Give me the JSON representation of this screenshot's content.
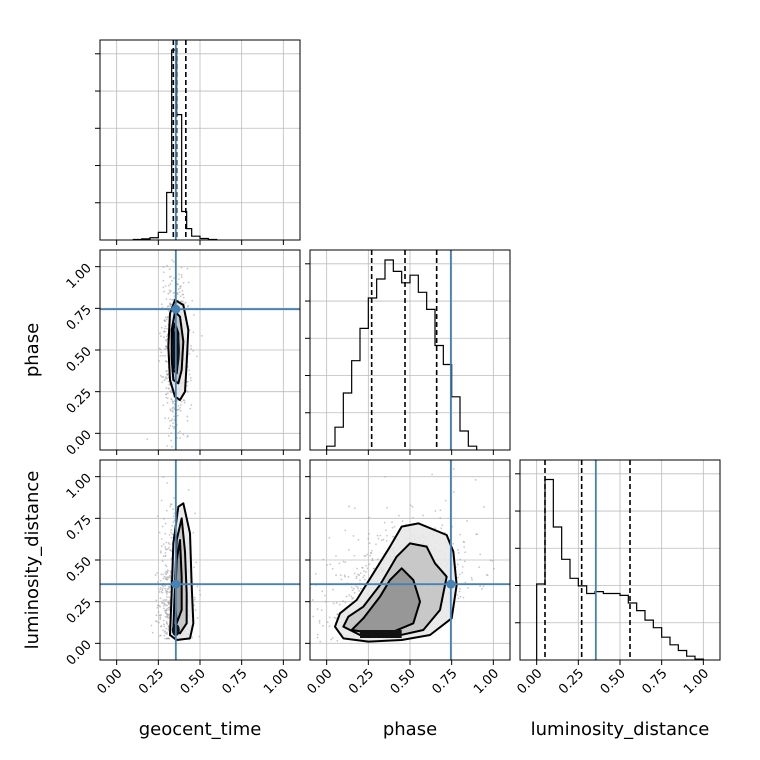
{
  "chart_data": {
    "type": "corner",
    "parameters": [
      "geocent_time",
      "phase",
      "luminosity_distance"
    ],
    "axis_range": [
      -0.1,
      1.1
    ],
    "ticks": [
      "0.00",
      "0.25",
      "0.50",
      "0.75",
      "1.00"
    ],
    "tick_values": [
      0,
      0.25,
      0.5,
      0.75,
      1.0
    ],
    "truths": [
      0.355,
      0.745,
      0.355
    ],
    "truth_color": "#4682b4",
    "grid": true,
    "histograms": [
      {
        "parameter": "geocent_time",
        "bin_edges": [
          0.1,
          0.15,
          0.2,
          0.25,
          0.3,
          0.33,
          0.36,
          0.39,
          0.42,
          0.45,
          0.5,
          0.55,
          0.6
        ],
        "counts": [
          0.003,
          0.006,
          0.012,
          0.04,
          0.25,
          1.0,
          0.66,
          0.15,
          0.06,
          0.02,
          0.008,
          0.003
        ],
        "quantiles": [
          0.34,
          0.36,
          0.415
        ]
      },
      {
        "parameter": "phase",
        "bin_edges": [
          0.0,
          0.05,
          0.1,
          0.15,
          0.2,
          0.25,
          0.3,
          0.35,
          0.4,
          0.45,
          0.5,
          0.55,
          0.6,
          0.65,
          0.7,
          0.75,
          0.8,
          0.85,
          0.9
        ],
        "counts": [
          0.02,
          0.12,
          0.3,
          0.47,
          0.64,
          0.8,
          0.9,
          1.0,
          0.94,
          0.88,
          0.92,
          0.83,
          0.74,
          0.55,
          0.45,
          0.28,
          0.1,
          0.02
        ],
        "quantiles": [
          0.27,
          0.47,
          0.66
        ]
      },
      {
        "parameter": "luminosity_distance",
        "bin_edges": [
          0.0,
          0.05,
          0.1,
          0.15,
          0.2,
          0.25,
          0.3,
          0.35,
          0.4,
          0.45,
          0.5,
          0.55,
          0.6,
          0.65,
          0.7,
          0.75,
          0.8,
          0.85,
          0.9,
          0.95,
          1.0
        ],
        "counts": [
          0.4,
          0.95,
          0.7,
          0.53,
          0.43,
          0.39,
          0.35,
          0.36,
          0.35,
          0.35,
          0.34,
          0.3,
          0.26,
          0.21,
          0.17,
          0.12,
          0.08,
          0.05,
          0.02,
          0.005
        ],
        "quantiles": [
          0.05,
          0.27,
          0.56
        ]
      }
    ],
    "pairs": [
      {
        "x": "geocent_time",
        "y": "phase",
        "center": [
          0.355,
          0.5
        ],
        "spread": [
          0.04,
          0.22
        ],
        "contours": [
          [
            [
              0.35,
              0.8
            ],
            [
              0.4,
              0.77
            ],
            [
              0.43,
              0.62
            ],
            [
              0.42,
              0.42
            ],
            [
              0.41,
              0.25
            ],
            [
              0.38,
              0.2
            ],
            [
              0.35,
              0.22
            ],
            [
              0.32,
              0.32
            ],
            [
              0.31,
              0.52
            ],
            [
              0.32,
              0.72
            ]
          ],
          [
            [
              0.35,
              0.73
            ],
            [
              0.38,
              0.7
            ],
            [
              0.4,
              0.55
            ],
            [
              0.39,
              0.38
            ],
            [
              0.37,
              0.3
            ],
            [
              0.34,
              0.32
            ],
            [
              0.33,
              0.45
            ],
            [
              0.33,
              0.62
            ]
          ],
          [
            [
              0.35,
              0.66
            ],
            [
              0.37,
              0.6
            ],
            [
              0.37,
              0.45
            ],
            [
              0.36,
              0.36
            ],
            [
              0.34,
              0.38
            ],
            [
              0.335,
              0.5
            ],
            [
              0.34,
              0.62
            ]
          ]
        ]
      },
      {
        "x": "geocent_time",
        "y": "luminosity_distance",
        "center": [
          0.355,
          0.35
        ],
        "spread": [
          0.05,
          0.3
        ],
        "contours": [
          [
            [
              0.4,
              0.84
            ],
            [
              0.44,
              0.66
            ],
            [
              0.45,
              0.35
            ],
            [
              0.46,
              0.12
            ],
            [
              0.44,
              0.03
            ],
            [
              0.36,
              0.02
            ],
            [
              0.32,
              0.05
            ],
            [
              0.33,
              0.3
            ],
            [
              0.34,
              0.6
            ],
            [
              0.37,
              0.82
            ]
          ],
          [
            [
              0.39,
              0.75
            ],
            [
              0.41,
              0.55
            ],
            [
              0.42,
              0.3
            ],
            [
              0.42,
              0.12
            ],
            [
              0.38,
              0.06
            ],
            [
              0.34,
              0.08
            ],
            [
              0.35,
              0.35
            ],
            [
              0.36,
              0.62
            ]
          ],
          [
            [
              0.38,
              0.62
            ],
            [
              0.39,
              0.4
            ],
            [
              0.39,
              0.2
            ],
            [
              0.36,
              0.12
            ],
            [
              0.35,
              0.25
            ],
            [
              0.36,
              0.5
            ]
          ]
        ]
      },
      {
        "x": "phase",
        "y": "luminosity_distance",
        "center": [
          0.4,
          0.25
        ],
        "spread": [
          0.22,
          0.2
        ],
        "contours": [
          [
            [
              0.05,
              0.1
            ],
            [
              0.1,
              0.03
            ],
            [
              0.25,
              0.01
            ],
            [
              0.45,
              0.02
            ],
            [
              0.62,
              0.05
            ],
            [
              0.75,
              0.15
            ],
            [
              0.78,
              0.35
            ],
            [
              0.76,
              0.55
            ],
            [
              0.72,
              0.65
            ],
            [
              0.55,
              0.72
            ],
            [
              0.45,
              0.7
            ],
            [
              0.38,
              0.58
            ],
            [
              0.28,
              0.42
            ],
            [
              0.18,
              0.26
            ],
            [
              0.08,
              0.18
            ]
          ],
          [
            [
              0.1,
              0.1
            ],
            [
              0.2,
              0.05
            ],
            [
              0.4,
              0.04
            ],
            [
              0.58,
              0.08
            ],
            [
              0.68,
              0.2
            ],
            [
              0.72,
              0.4
            ],
            [
              0.65,
              0.48
            ],
            [
              0.6,
              0.58
            ],
            [
              0.5,
              0.6
            ],
            [
              0.42,
              0.52
            ],
            [
              0.32,
              0.35
            ],
            [
              0.22,
              0.22
            ],
            [
              0.13,
              0.16
            ]
          ],
          [
            [
              0.15,
              0.08
            ],
            [
              0.28,
              0.06
            ],
            [
              0.4,
              0.07
            ],
            [
              0.52,
              0.12
            ],
            [
              0.56,
              0.25
            ],
            [
              0.52,
              0.38
            ],
            [
              0.45,
              0.45
            ],
            [
              0.38,
              0.38
            ],
            [
              0.32,
              0.28
            ],
            [
              0.22,
              0.15
            ]
          ]
        ]
      }
    ]
  }
}
